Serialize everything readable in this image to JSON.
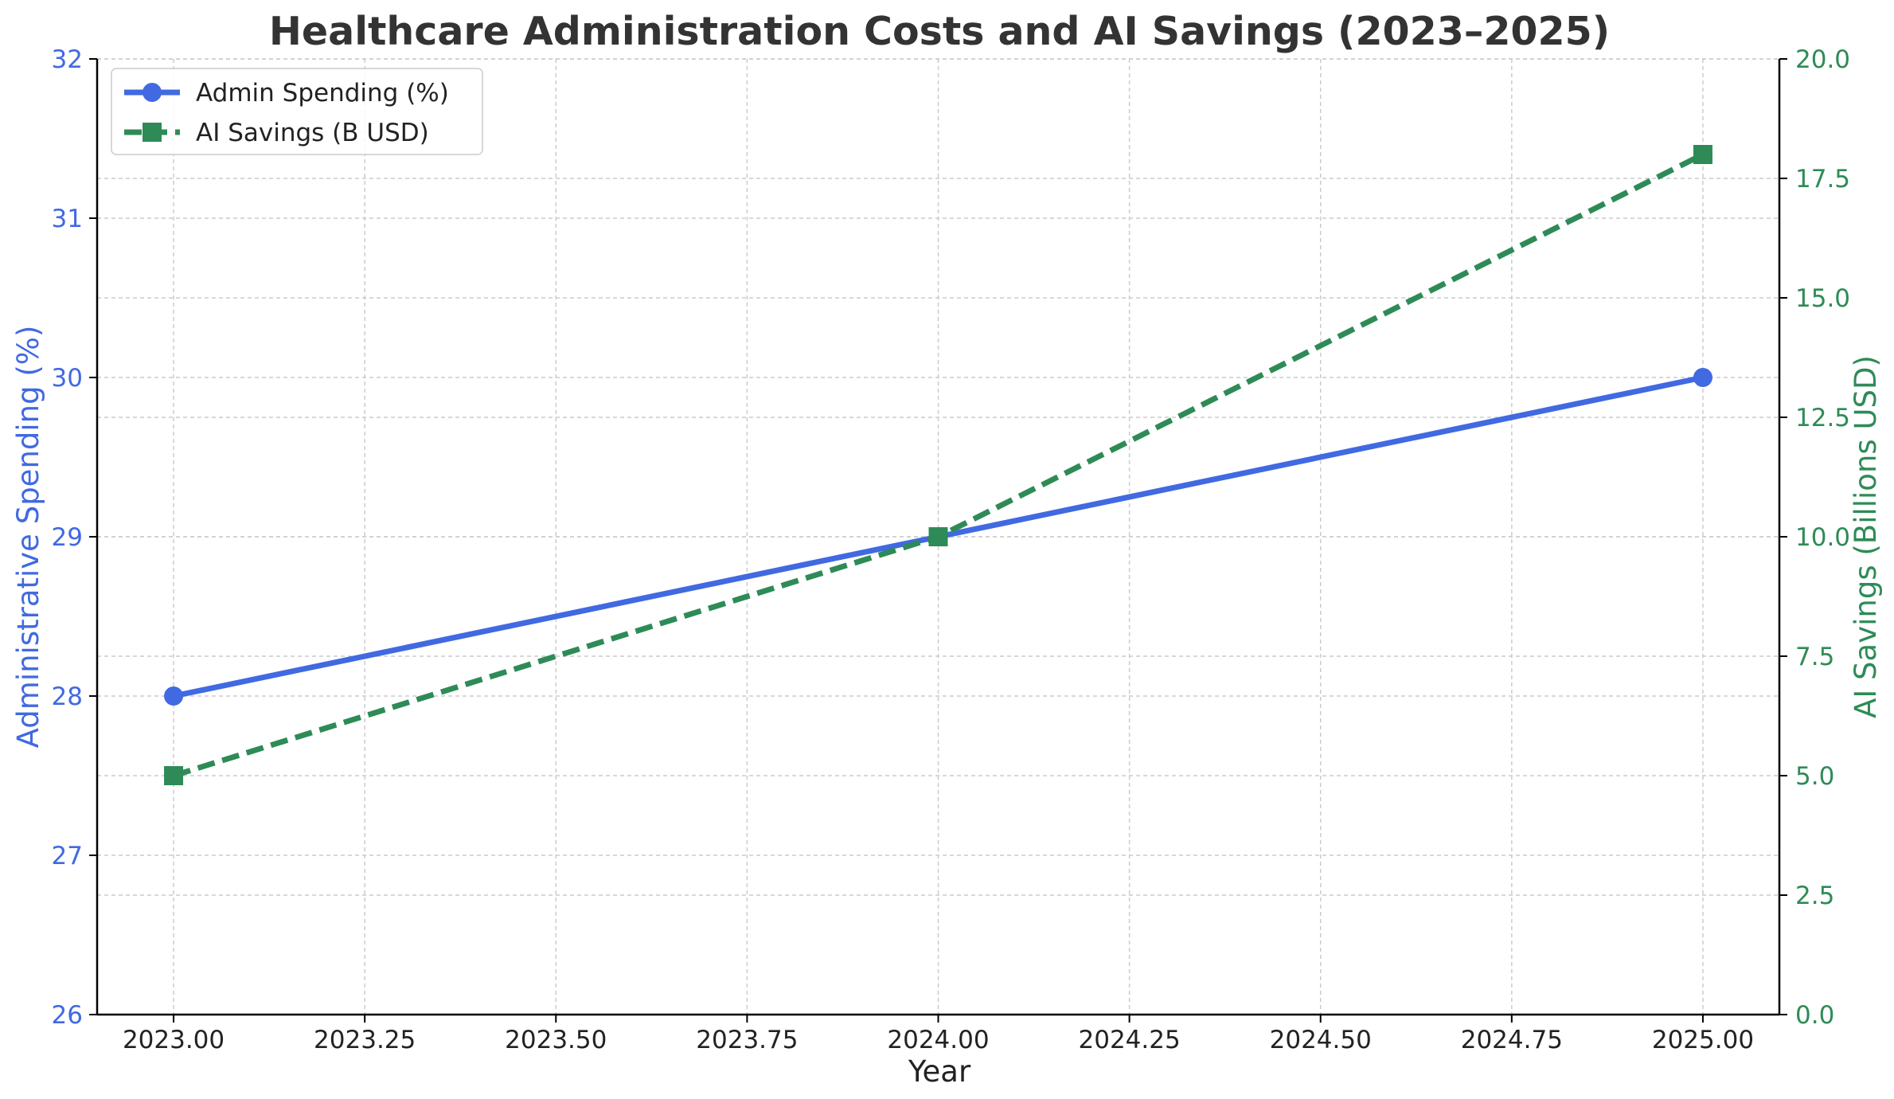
{
  "chart_data": {
    "type": "line",
    "title": "Healthcare Administration Costs and AI Savings (2023–2025)",
    "xlabel": "Year",
    "ylabel_left": "Administrative Spending (%)",
    "ylabel_right": "AI Savings (Billions USD)",
    "x": [
      2023,
      2024,
      2025
    ],
    "xlim": [
      2022.9,
      2025.1
    ],
    "xticks": [
      2023.0,
      2023.25,
      2023.5,
      2023.75,
      2024.0,
      2024.25,
      2024.5,
      2024.75,
      2025.0
    ],
    "xtick_labels": [
      "2023.00",
      "2023.25",
      "2023.50",
      "2023.75",
      "2024.00",
      "2024.25",
      "2024.50",
      "2024.75",
      "2025.00"
    ],
    "ylim_left": [
      26,
      32
    ],
    "yticks_left": [
      26,
      27,
      28,
      29,
      30,
      31,
      32
    ],
    "ytick_labels_left": [
      "26",
      "27",
      "28",
      "29",
      "30",
      "31",
      "32"
    ],
    "ylim_right": [
      0,
      20
    ],
    "yticks_right": [
      0,
      2.5,
      5,
      7.5,
      10,
      12.5,
      15,
      17.5,
      20
    ],
    "ytick_labels_right": [
      "0.0",
      "2.5",
      "5.0",
      "7.5",
      "10.0",
      "12.5",
      "15.0",
      "17.5",
      "20.0"
    ],
    "grid": true,
    "legend_position": "top-left",
    "series": [
      {
        "name": "Admin Spending (%)",
        "axis": "left",
        "values": [
          28,
          29,
          30
        ],
        "color": "#4169e1",
        "linestyle": "solid",
        "marker": "circle"
      },
      {
        "name": "AI Savings (B USD)",
        "axis": "right",
        "values": [
          5,
          10,
          18
        ],
        "color": "#2e8b57",
        "linestyle": "dashed",
        "marker": "square"
      }
    ]
  }
}
